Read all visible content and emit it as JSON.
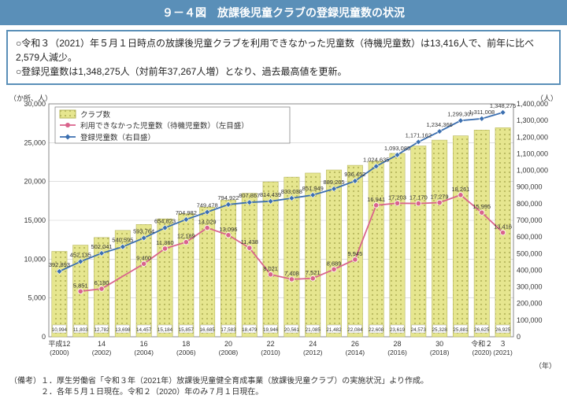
{
  "title": "９－４図　放課後児童クラブの登録児童数の状況",
  "desc1": "○令和３（2021）年５月１日時点の放課後児童クラブを利用できなかった児童数（待機児童数）は13,416人で、前年に比べ2,579人減少。",
  "desc2": "○登録児童数は1,348,275人（対前年37,267人増）となり、過去最高値を更新。",
  "yLeftLabel": "（か所、人）",
  "yRightLabel": "（人）",
  "xLabel": "（年）",
  "legend": {
    "bars": "クラブ数",
    "pink": "利用できなかった児童数（待機児童数）（左目盛）",
    "blue": "登録児童数（右目盛）"
  },
  "footnote1": "（備考）１．厚生労働省「令和３年（2021年）放課後児童健全育成事業（放課後児童クラブ）の実施状況」より作成。",
  "footnote2": "　　　　２．各年５月１日現在。令和２（2020）年のみ７月１日現在。",
  "chart": {
    "type": "combo-bar-line",
    "bg": "#ffffff",
    "plot_bg": "#ffffff",
    "grid_color": "#c9c9c9",
    "bar_fill": "#e6e68f",
    "bar_hatch_color": "#b7b75e",
    "blue_line": "#3b6fb0",
    "blue_marker": "#3b6fb0",
    "pink_line": "#d9638c",
    "pink_marker": "#d9638c",
    "label_color": "#333333",
    "axis_color": "#888888",
    "font_size_axis": 9,
    "font_size_dl": 7.5,
    "yLeft": {
      "min": 0,
      "max": 30000,
      "step": 5000
    },
    "yRight": {
      "min": 0,
      "max": 1400000,
      "step": 100000
    },
    "years": [
      "平成12",
      "13",
      "14",
      "15",
      "16",
      "17",
      "18",
      "19",
      "20",
      "21",
      "22",
      "23",
      "24",
      "25",
      "26",
      "27",
      "28",
      "29",
      "30",
      "令和元",
      "令和２",
      "３"
    ],
    "years_sub": [
      "(2000)",
      "",
      "(2002)",
      "",
      "(2004)",
      "",
      "(2006)",
      "",
      "(2008)",
      "",
      "(2010)",
      "",
      "(2012)",
      "",
      "(2014)",
      "",
      "(2016)",
      "",
      "(2018)",
      "",
      "(2020)",
      "(2021)"
    ],
    "clubs": [
      10994,
      11803,
      12782,
      13698,
      14457,
      15184,
      15857,
      16685,
      17583,
      18479,
      19946,
      20561,
      21085,
      21482,
      22084,
      22608,
      23619,
      24573,
      25328,
      25881,
      26625,
      26925
    ],
    "waiting": [
      null,
      5851,
      6180,
      null,
      9400,
      11360,
      12189,
      14029,
      13096,
      11438,
      8021,
      7408,
      7521,
      8689,
      9945,
      16941,
      17203,
      17170,
      17279,
      18261,
      15995,
      13416
    ],
    "registered": [
      392893,
      452135,
      502041,
      540595,
      593764,
      654823,
      704982,
      749478,
      794922,
      807857,
      814439,
      833038,
      851949,
      889205,
      936452,
      1024635,
      1093085,
      1171162,
      1234366,
      1299307,
      1311008,
      1348275
    ]
  }
}
